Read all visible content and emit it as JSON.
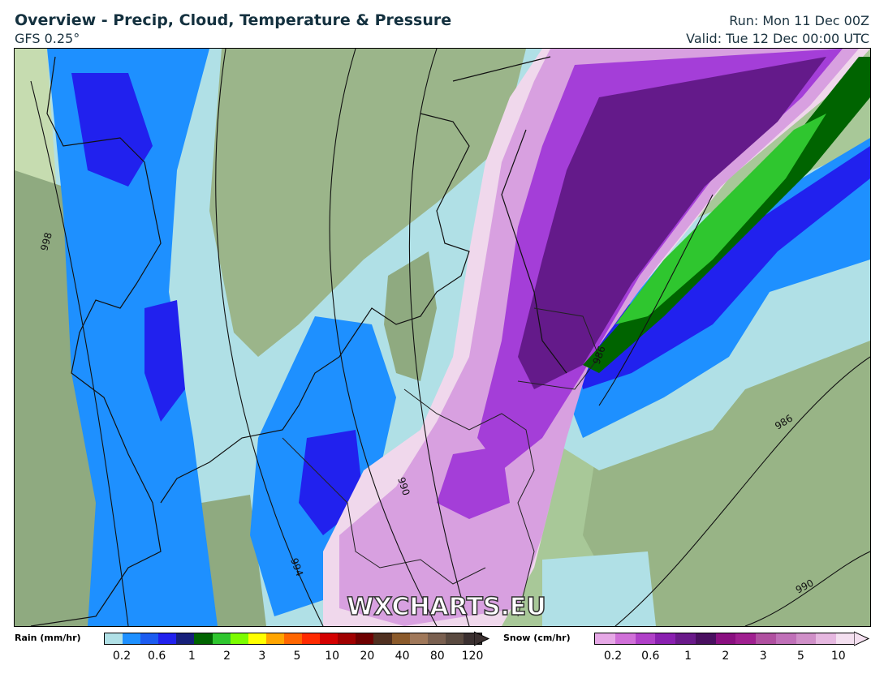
{
  "header": {
    "title": "Overview - Precip, Cloud, Temperature & Pressure",
    "model": "GFS 0.25°",
    "run": "Run: Mon 11 Dec 00Z",
    "valid": "Valid: Tue 12 Dec 00:00 UTC"
  },
  "watermark": "WXCHARTS.EU",
  "isobars": [
    "998",
    "994",
    "990",
    "986",
    "986",
    "990"
  ],
  "legend": {
    "rain": {
      "label": "Rain (mm/hr)",
      "ticks": [
        "0.2",
        "0.6",
        "1",
        "2",
        "3",
        "5",
        "10",
        "20",
        "40",
        "80",
        "120"
      ],
      "colors": [
        "#b0e0e6",
        "#1e90ff",
        "#1c5cf0",
        "#2121ee",
        "#17207a",
        "#006400",
        "#2fc62f",
        "#7cfc00",
        "#ffff00",
        "#ffa500",
        "#ff6600",
        "#ff2a00",
        "#d40000",
        "#a00000",
        "#6e0000",
        "#503020",
        "#8b5a2b",
        "#a0785a",
        "#7a6050",
        "#5a4a40",
        "#3b3030"
      ]
    },
    "snow": {
      "label": "Snow (cm/hr)",
      "ticks": [
        "0.2",
        "0.6",
        "1",
        "2",
        "3",
        "5",
        "10"
      ],
      "colors": [
        "#e6a8e6",
        "#d070d8",
        "#b040c8",
        "#8a20b0",
        "#6a1a8a",
        "#4a1060",
        "#8a1080",
        "#a02090",
        "#b050a0",
        "#c070b8",
        "#d090c8",
        "#e6b8e0",
        "#f4e0f0"
      ]
    }
  },
  "palette": {
    "cloud_dark": "#8faa80",
    "cloud_mid": "#9bb58a",
    "rain_light": "#b0e0e6",
    "rain_mid": "#1e90ff",
    "rain_heavy": "#2121ee",
    "snow_light": "#f0d8ec",
    "snow_mid": "#d8a0e0",
    "snow_heavy": "#a43ed8",
    "snow_very_heavy": "#641a8a",
    "green_band": "#006400"
  }
}
